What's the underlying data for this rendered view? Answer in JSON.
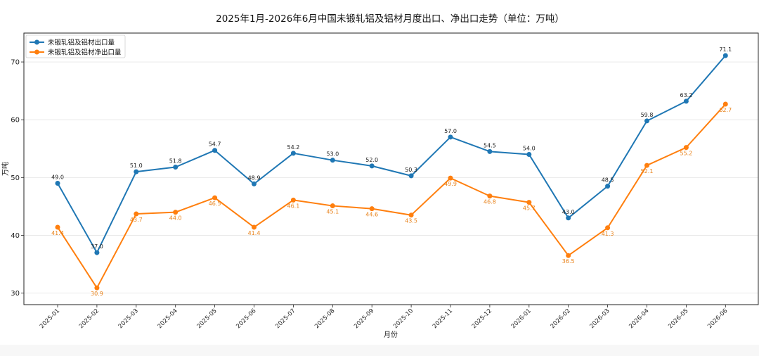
{
  "chart_data": {
    "type": "line",
    "title": "2025年1月-2026年6月中国未锻轧铝及铝材月度出口、净出口走势（单位：万吨）",
    "xlabel": "月份",
    "ylabel": "万吨",
    "ylim": [
      28,
      75
    ],
    "yticks": [
      30,
      40,
      50,
      60,
      70
    ],
    "grid": "horizontal",
    "legend_position": "top-left",
    "categories": [
      "2025-01",
      "2025-02",
      "2025-03",
      "2025-04",
      "2025-05",
      "2025-06",
      "2025-07",
      "2025-08",
      "2025-09",
      "2025-10",
      "2025-11",
      "2025-12",
      "2026-01",
      "2026-02",
      "2026-03",
      "2026-04",
      "2026-05",
      "2026-06"
    ],
    "series": [
      {
        "name": "未锻轧铝及铝材出口量",
        "color": "#1f77b4",
        "label_color": "#222222",
        "label_position": "above",
        "values": [
          49.0,
          37.0,
          51.0,
          51.8,
          54.7,
          48.9,
          54.2,
          53.0,
          52.0,
          50.3,
          57.0,
          54.5,
          54.0,
          43.0,
          48.5,
          59.8,
          63.2,
          71.1
        ],
        "labels": [
          "49.0",
          "37.0",
          "51.0",
          "51.8",
          "54.7",
          "48.9",
          "54.2",
          "53.0",
          "52.0",
          "50.3",
          "57.0",
          "54.5",
          "54.0",
          "43.0",
          "48.5",
          "59.8",
          "63.2",
          "71.1"
        ]
      },
      {
        "name": "未锻轧铝及铝材净出口量",
        "color": "#ff7f0e",
        "label_color": "#e8821a",
        "label_position": "below",
        "values": [
          41.4,
          30.9,
          43.7,
          44.0,
          46.5,
          41.4,
          46.1,
          45.1,
          44.6,
          43.5,
          49.9,
          46.8,
          45.7,
          36.5,
          41.3,
          52.1,
          55.2,
          62.7
        ],
        "labels": [
          "41.4",
          "30.9",
          "43.7",
          "44.0",
          "46.5",
          "41.4",
          "46.1",
          "45.1",
          "44.6",
          "43.5",
          "49.9",
          "46.8",
          "45.7",
          "36.5",
          "41.3",
          "52.1",
          "55.2",
          "62.7"
        ]
      }
    ]
  }
}
